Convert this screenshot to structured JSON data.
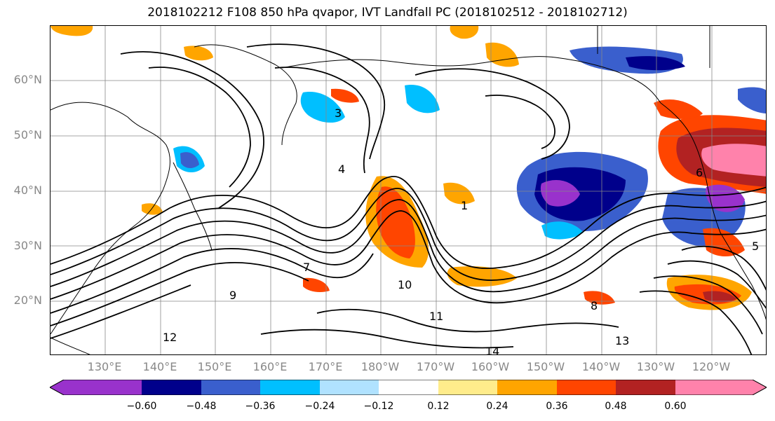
{
  "title": "2018102212 F108 850 hPa qvapor, IVT Landfall PC (2018102512 - 2018102712)",
  "map": {
    "lat_labels": [
      "60°N",
      "50°N",
      "40°N",
      "30°N",
      "20°N"
    ],
    "lon_labels": [
      "130°E",
      "140°E",
      "150°E",
      "160°E",
      "170°E",
      "180°W",
      "170°W",
      "160°W",
      "150°W",
      "140°W",
      "130°W",
      "120°W"
    ],
    "contour_labels": [
      "3",
      "4",
      "1",
      "9",
      "10",
      "11",
      "12",
      "13",
      "14",
      "8",
      "7",
      "5",
      "6"
    ]
  },
  "colorbar": {
    "tick_labels": [
      "−0.60",
      "−0.48",
      "−0.36",
      "−0.24",
      "−0.12",
      "0.12",
      "0.24",
      "0.36",
      "0.48",
      "0.60"
    ],
    "colors": [
      "#9932cc",
      "#00008b",
      "#3a5fcd",
      "#00bfff",
      "#b0e2ff",
      "#ffffff",
      "#ffec8b",
      "#ffa500",
      "#ff4500",
      "#b22222",
      "#ff82ab"
    ]
  }
}
